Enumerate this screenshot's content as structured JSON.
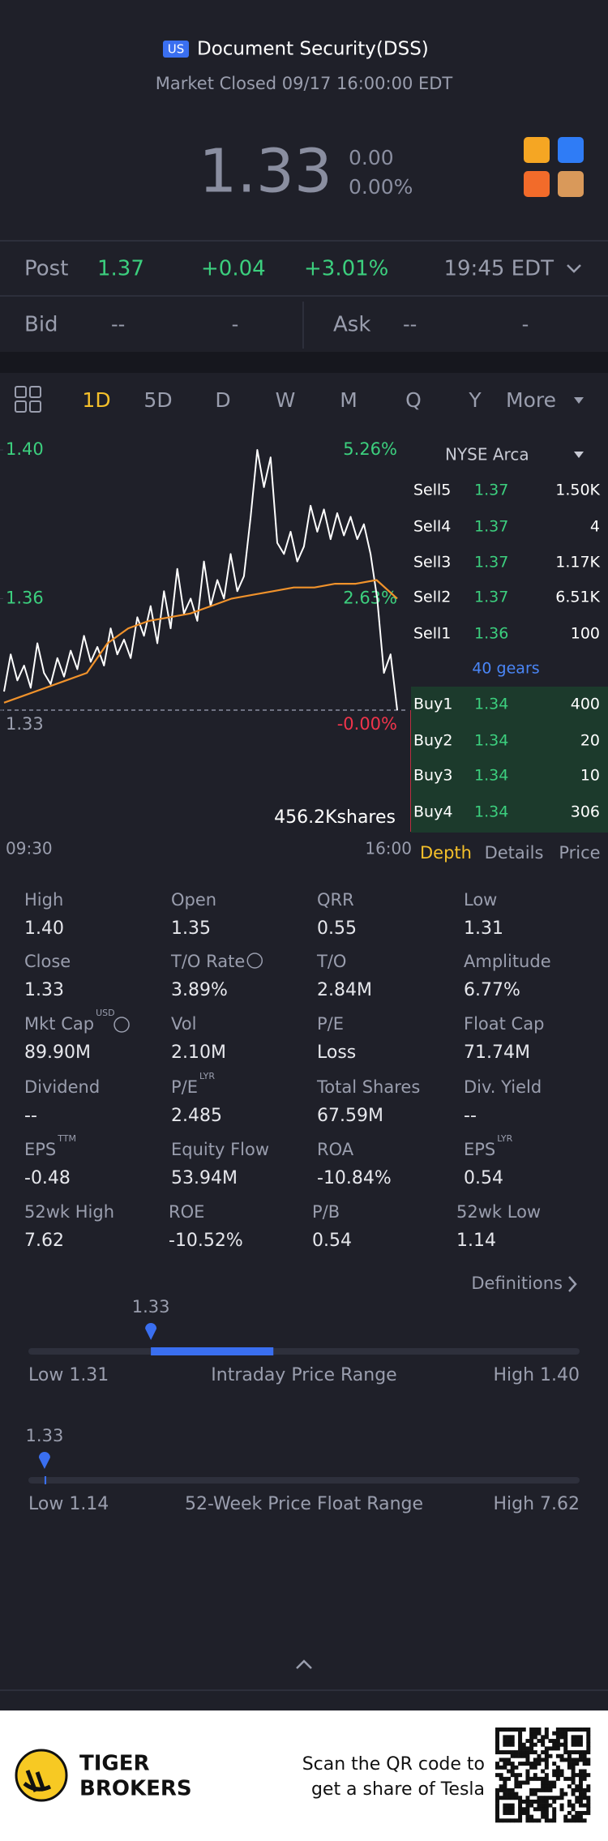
{
  "header": {
    "market_badge": "US",
    "title": "Document Security(DSS)",
    "status": "Market Closed 09/17 16:00:00 EDT",
    "price": "1.33",
    "change": "0.00",
    "change_pct": "0.00%"
  },
  "post": {
    "label": "Post",
    "price": "1.37",
    "change": "+0.04",
    "change_pct": "+3.01%",
    "time": "19:45 EDT"
  },
  "quote": {
    "bid_label": "Bid",
    "bid": "--",
    "bid_size": "-",
    "ask_label": "Ask",
    "ask": "--",
    "ask_size": "-"
  },
  "tabs": [
    "1D",
    "5D",
    "D",
    "W",
    "M",
    "Q",
    "Y",
    "More"
  ],
  "chart_data": {
    "type": "line",
    "x_labels": [
      "09:30",
      "16:00"
    ],
    "ylim": [
      1.33,
      1.4
    ],
    "yticks": [
      1.33,
      1.36,
      {
        "value": 1.4,
        "label": "1.40"
      }
    ],
    "right_labels": [
      "-0.00%",
      "2.63%",
      "5.26%"
    ],
    "volume_label": "456.2Kshares",
    "series": [
      {
        "color": "#ffffff",
        "values": [
          1.335,
          1.345,
          1.338,
          1.342,
          1.336,
          1.348,
          1.34,
          1.337,
          1.344,
          1.339,
          1.346,
          1.341,
          1.35,
          1.343,
          1.347,
          1.342,
          1.352,
          1.345,
          1.349,
          1.344,
          1.355,
          1.35,
          1.358,
          1.348,
          1.362,
          1.352,
          1.368,
          1.356,
          1.36,
          1.354,
          1.37,
          1.358,
          1.365,
          1.36,
          1.372,
          1.362,
          1.366,
          1.382,
          1.4,
          1.39,
          1.398,
          1.375,
          1.372,
          1.378,
          1.37,
          1.374,
          1.385,
          1.378,
          1.384,
          1.376,
          1.383,
          1.377,
          1.382,
          1.376,
          1.38,
          1.372,
          1.36,
          1.34,
          1.345,
          1.33
        ]
      },
      {
        "color": "#f0922b",
        "values": [
          1.332,
          1.334,
          1.336,
          1.338,
          1.34,
          1.348,
          1.352,
          1.354,
          1.355,
          1.356,
          1.358,
          1.36,
          1.361,
          1.362,
          1.363,
          1.363,
          1.364,
          1.364,
          1.365,
          1.36
        ]
      }
    ]
  },
  "order_book": {
    "exchange": "NYSE Arca",
    "asks": [
      {
        "level": "Sell5",
        "price": "1.37",
        "size": "1.50K"
      },
      {
        "level": "Sell4",
        "price": "1.37",
        "size": "4"
      },
      {
        "level": "Sell3",
        "price": "1.37",
        "size": "1.17K"
      },
      {
        "level": "Sell2",
        "price": "1.37",
        "size": "6.51K"
      },
      {
        "level": "Sell1",
        "price": "1.36",
        "size": "100"
      }
    ],
    "gears": "40 gears",
    "bids": [
      {
        "level": "Buy1",
        "price": "1.34",
        "size": "400"
      },
      {
        "level": "Buy2",
        "price": "1.34",
        "size": "20"
      },
      {
        "level": "Buy3",
        "price": "1.34",
        "size": "10"
      },
      {
        "level": "Buy4",
        "price": "1.34",
        "size": "306"
      }
    ]
  },
  "depth_tabs": [
    "Depth",
    "Details",
    "Price"
  ],
  "stats": [
    {
      "label": "High",
      "value": "1.40"
    },
    {
      "label": "Open",
      "value": "1.35"
    },
    {
      "label": "QRR",
      "value": "0.55"
    },
    {
      "label": "Low",
      "value": "1.31"
    },
    {
      "label": "Close",
      "value": "1.33"
    },
    {
      "label": "T/O Rate",
      "value": "3.89%"
    },
    {
      "label": "T/O",
      "value": "2.84M"
    },
    {
      "label": "Amplitude",
      "value": "6.77%"
    },
    {
      "label": "Mkt Cap",
      "sup": "USD",
      "value": "89.90M"
    },
    {
      "label": "Vol",
      "value": "2.10M"
    },
    {
      "label": "P/E",
      "value": "Loss"
    },
    {
      "label": "Float Cap",
      "value": "71.74M"
    },
    {
      "label": "Dividend",
      "value": "--"
    },
    {
      "label": "P/E",
      "sup": "LYR",
      "value": "2.485"
    },
    {
      "label": "Total Shares",
      "value": "67.59M"
    },
    {
      "label": "Div. Yield",
      "value": "--"
    },
    {
      "label": "EPS",
      "sup": "TTM",
      "value": "-0.48"
    },
    {
      "label": "Equity Flow",
      "value": "53.94M"
    },
    {
      "label": "ROA",
      "value": "-10.84%"
    },
    {
      "label": "EPS",
      "sup": "LYR",
      "value": "0.54"
    },
    {
      "label": "52wk High",
      "value": "7.62"
    },
    {
      "label": "ROE",
      "value": "-10.52%"
    },
    {
      "label": "P/B",
      "value": "0.54"
    },
    {
      "label": "52wk Low",
      "value": "1.14"
    }
  ],
  "definitions": "Definitions",
  "ranges": [
    {
      "current": 1.33,
      "open": 1.35,
      "low": {
        "value": 1.31,
        "label": "Low 1.31"
      },
      "high": {
        "value": 1.4,
        "label": "High 1.40"
      },
      "title": "Intraday Price Range"
    },
    {
      "current": 1.33,
      "open": 1.35,
      "low": {
        "value": 1.14,
        "label": "Low 1.14"
      },
      "high": {
        "value": 7.62,
        "label": "High 7.62"
      },
      "title": "52-Week Price Float Range"
    }
  ],
  "footer": {
    "brand_line1": "TIGER",
    "brand_line2": "BROKERS",
    "scan_line1": "Scan the QR code to",
    "scan_line2": "get a share of Tesla"
  }
}
